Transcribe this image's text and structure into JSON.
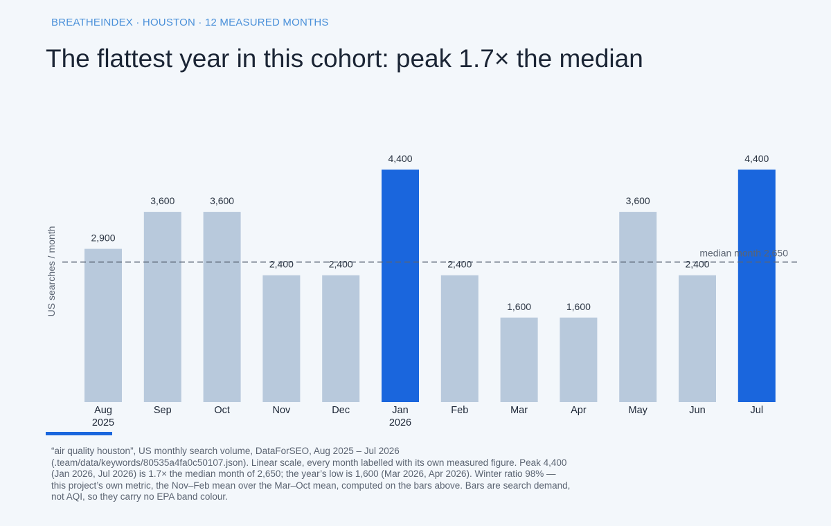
{
  "header": {
    "kicker": "BREATHEINDEX · HOUSTON · 12 MEASURED MONTHS",
    "title": "The flattest year in this cohort: peak 1.7× the median"
  },
  "chart_data": {
    "type": "bar",
    "categories": [
      "Aug",
      "Sep",
      "Oct",
      "Nov",
      "Dec",
      "Jan",
      "Feb",
      "Mar",
      "Apr",
      "May",
      "Jun",
      "Jul"
    ],
    "category_sublabels": [
      "2025",
      "",
      "",
      "",
      "",
      "2026",
      "",
      "",
      "",
      "",
      "",
      ""
    ],
    "values": [
      2900,
      3600,
      3600,
      2400,
      2400,
      4400,
      2400,
      1600,
      1600,
      3600,
      2400,
      4400
    ],
    "value_labels": [
      "2,900",
      "3,600",
      "3,600",
      "2,400",
      "2,400",
      "4,400",
      "2,400",
      "1,600",
      "1,600",
      "3,600",
      "2,400",
      "4,400"
    ],
    "highlighted": [
      false,
      false,
      false,
      false,
      false,
      true,
      false,
      false,
      false,
      false,
      false,
      true
    ],
    "ylabel": "US searches / month",
    "ylim": [
      0,
      4400
    ],
    "reference_line": {
      "value": 2650,
      "label": "median month  2,650"
    },
    "grid": false,
    "colors": {
      "bar": "#b8c9dc",
      "highlight": "#1a66dd",
      "reference": "#5a6474",
      "text": "#2a3442"
    }
  },
  "footnote": {
    "lines": [
      "“air quality houston”, US monthly search volume, DataForSEO, Aug 2025 – Jul 2026",
      "(.team/data/keywords/80535a4fa0c50107.json). Linear scale, every month labelled with its own measured figure. Peak 4,400",
      "(Jan 2026, Jul 2026) is 1.7× the median month of 2,650; the year’s low is 1,600 (Mar 2026, Apr 2026). Winter ratio 98%  —",
      "this project’s own metric, the Nov–Feb mean over the Mar–Oct mean, computed on the bars above. Bars are search demand,",
      "not AQI, so they carry no EPA band colour."
    ]
  }
}
